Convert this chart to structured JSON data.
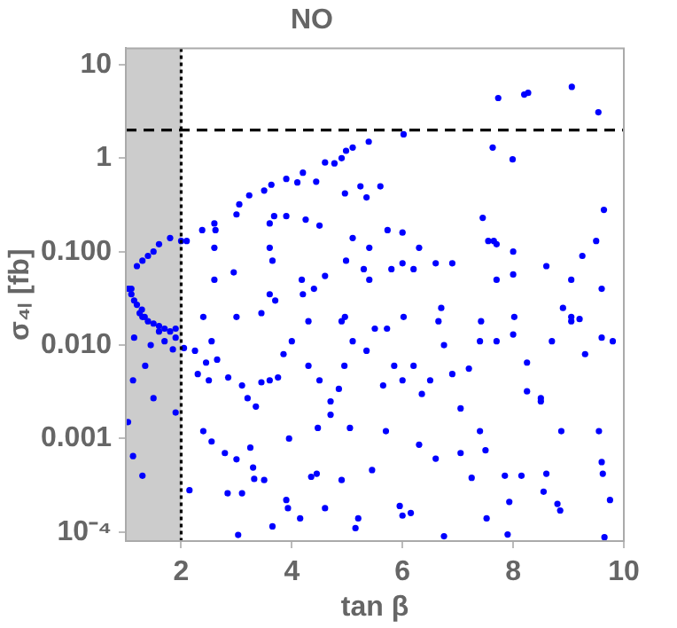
{
  "chart_data": {
    "type": "scatter",
    "title": "NO",
    "xlabel": "tan β",
    "ylabel": "σ₄ₗ [fb]",
    "color": "#0000ff",
    "marker": "circle",
    "log": "y",
    "grid": false,
    "legend": false,
    "xlim": [
      1,
      10
    ],
    "xticks": [
      2,
      4,
      6,
      8,
      10
    ],
    "ylim": [
      8e-05,
      15
    ],
    "yticks": [
      {
        "value": 0.0001,
        "label": "10⁻⁴"
      },
      {
        "value": 0.001,
        "label": "0.001"
      },
      {
        "value": 0.01,
        "label": "0.010"
      },
      {
        "value": 0.1,
        "label": "0.100"
      },
      1,
      10
    ],
    "ref_lines": [
      {
        "axis": "y",
        "value": 2,
        "label": null,
        "line_style": "dashed",
        "color": "#000000"
      },
      {
        "axis": "x",
        "value": 2,
        "label": null,
        "line_style": "dotted",
        "color": "#000000"
      }
    ],
    "bands": [
      {
        "axis": "x",
        "from": 1,
        "to": 2,
        "label": null,
        "color": "#cccccc"
      }
    ],
    "x": [
      7.73,
      8.2,
      8.27,
      9.06,
      9.54,
      6.02,
      5.39,
      5.1,
      4.98,
      4.9,
      4.77,
      4.6,
      4.44,
      4.2,
      4.1,
      3.9,
      3.63,
      3.5,
      3.23,
      7.63,
      7.99,
      5.24,
      5.6,
      4.96,
      5.35,
      9.64,
      7.45,
      3.05,
      3.0,
      2.6,
      2.62,
      2.38,
      2.0,
      2.1,
      3.68,
      3.9,
      3.6,
      4.25,
      4.5,
      5.73,
      6.0,
      5.1,
      7.55,
      7.65,
      9.5,
      3.6,
      5.4,
      6.3,
      7.7,
      8.0,
      2.6,
      1.2,
      1.3,
      1.4,
      1.5,
      1.6,
      1.8,
      2.6,
      2.95,
      3.65,
      4.18,
      4.6,
      4.98,
      5.3,
      5.4,
      5.8,
      6.0,
      6.2,
      6.6,
      6.9,
      7.7,
      8.0,
      8.6,
      9.05,
      9.25,
      9.6,
      1.1,
      1.29,
      1.34,
      1.6,
      1.9,
      1.13,
      1.04,
      1.13,
      1.3,
      1.5,
      1.9,
      1.35,
      1.85,
      2.15,
      2.4,
      2.55,
      2.79,
      2.84,
      3.0,
      3.03,
      3.1,
      3.3,
      3.32,
      3.25,
      3.5,
      3.65,
      3.9,
      3.93,
      3.95,
      4.15,
      4.35,
      4.45,
      4.6,
      4.47,
      4.7,
      4.9,
      5.05,
      5.15,
      5.2,
      5.45,
      5.7,
      5.95,
      6.0,
      6.15,
      6.3,
      6.6,
      6.75,
      7.05,
      7.25,
      7.4,
      7.5,
      7.52,
      7.85,
      7.93,
      7.9,
      8.15,
      8.25,
      8.5,
      8.55,
      8.6,
      8.8,
      8.85,
      8.87,
      9.55,
      9.6,
      9.62,
      9.65,
      9.75,
      2.05,
      2.25,
      2.45,
      2.55,
      2.65,
      2.3,
      2.5,
      2.85,
      3.1,
      3.2,
      3.35,
      3.45,
      3.6,
      3.75,
      3.85,
      4.0,
      4.3,
      4.5,
      4.7,
      4.85,
      4.95,
      5.1,
      5.35,
      5.5,
      5.65,
      5.85,
      6.0,
      6.2,
      6.35,
      6.5,
      6.75,
      6.9,
      7.05,
      7.2,
      7.4,
      7.7,
      8.0,
      8.25,
      8.5,
      8.7,
      9.05,
      9.3,
      9.6,
      9.8,
      7.42,
      6.65,
      6.02,
      4.3,
      4.9,
      3.0,
      3.45,
      5.72,
      2.4,
      3.6,
      3.7,
      4.2,
      4.4,
      4.96,
      6.7,
      8.02,
      8.9,
      9.05,
      9.2,
      1.05,
      1.1,
      1.15,
      1.2,
      1.25,
      1.3,
      1.4,
      1.5,
      1.6,
      1.7,
      1.8,
      1.9,
      1.15,
      1.45,
      1.7
    ],
    "values": [
      4.4,
      4.8,
      5.0,
      5.8,
      3.1,
      1.8,
      1.5,
      1.3,
      1.2,
      1.0,
      0.88,
      0.9,
      0.56,
      0.7,
      0.55,
      0.6,
      0.52,
      0.45,
      0.4,
      1.3,
      0.97,
      0.5,
      0.5,
      0.42,
      0.38,
      0.28,
      0.23,
      0.32,
      0.25,
      0.2,
      0.17,
      0.17,
      0.13,
      0.13,
      0.24,
      0.24,
      0.2,
      0.22,
      0.19,
      0.17,
      0.16,
      0.14,
      0.13,
      0.13,
      0.13,
      0.11,
      0.11,
      0.11,
      0.12,
      0.1,
      0.11,
      0.07,
      0.08,
      0.09,
      0.1,
      0.12,
      0.14,
      0.05,
      0.06,
      0.08,
      0.05,
      0.055,
      0.08,
      0.065,
      0.05,
      0.065,
      0.075,
      0.065,
      0.075,
      0.075,
      0.05,
      0.057,
      0.07,
      0.05,
      0.09,
      0.04,
      0.04,
      0.024,
      0.02,
      0.014,
      0.015,
      0.0042,
      0.0015,
      0.00065,
      0.0004,
      0.0027,
      0.0019,
      0.006,
      0.009,
      0.00028,
      0.0012,
      0.00093,
      0.0007,
      0.00026,
      0.0006,
      9.3e-05,
      0.00026,
      0.00049,
      0.00037,
      0.0008,
      0.00036,
      0.000115,
      0.00022,
      0.00018,
      0.001,
      0.00014,
      0.00039,
      0.00042,
      0.00018,
      0.0013,
      0.0018,
      0.00036,
      0.0013,
      0.00011,
      0.00014,
      0.00046,
      0.0012,
      0.00019,
      0.00015,
      0.00016,
      0.00086,
      0.00061,
      9e-05,
      0.0007,
      0.00038,
      0.0012,
      0.00075,
      0.00014,
      0.0004,
      0.00021,
      9.4e-05,
      0.0004,
      0.0032,
      0.0025,
      0.00027,
      0.00042,
      0.0002,
      0.00017,
      0.0012,
      0.0012,
      0.00056,
      0.00042,
      8.8e-05,
      0.00022,
      0.0093,
      0.0087,
      0.0065,
      0.011,
      0.007,
      0.0049,
      0.0042,
      0.0045,
      0.0037,
      0.0027,
      0.0022,
      0.004,
      0.0042,
      0.0045,
      0.008,
      0.011,
      0.006,
      0.0042,
      0.0025,
      0.0034,
      0.006,
      0.011,
      0.0087,
      0.015,
      0.0037,
      0.006,
      0.0042,
      0.006,
      0.003,
      0.0042,
      0.01,
      0.0049,
      0.0021,
      0.0056,
      0.011,
      0.011,
      0.013,
      0.0065,
      0.0027,
      0.011,
      0.018,
      0.008,
      0.012,
      0.011,
      0.018,
      0.018,
      0.02,
      0.018,
      0.018,
      0.02,
      0.022,
      0.015,
      0.02,
      0.035,
      0.03,
      0.035,
      0.04,
      0.02,
      0.025,
      0.02,
      0.025,
      0.02,
      0.019,
      0.04,
      0.035,
      0.03,
      0.027,
      0.022,
      0.02,
      0.018,
      0.017,
      0.016,
      0.015,
      0.014,
      0.012,
      0.012,
      0.01,
      0.011
    ]
  }
}
